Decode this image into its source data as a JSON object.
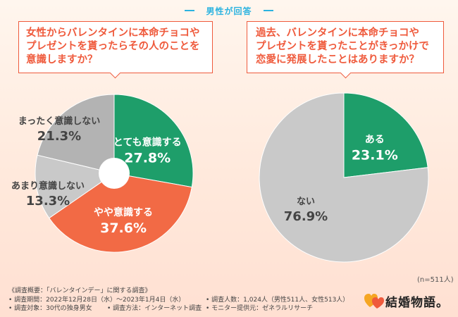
{
  "header": {
    "label": "男性が回答"
  },
  "question_left": {
    "lines": [
      "女性からバレンタインに本命チョコや",
      "プレゼントを貰ったらその人のことを",
      "意識しますか？"
    ]
  },
  "question_right": {
    "lines": [
      "過去、バレンタインに本命チョコや",
      "プレゼントを貰ったことがきっかけで",
      "恋愛に発展したことはありますか？"
    ]
  },
  "sample_note": "(n=511人)",
  "colors": {
    "accent": "#ef5a3c",
    "green": "#1e9e6a",
    "orange": "#f26a45",
    "light_gray": "#c9c9c9",
    "mid_gray": "#b3b3b3",
    "question": "#ef5a3c"
  },
  "chart_data": [
    {
      "type": "pie",
      "variant": "donut",
      "categories": [
        "とても意識する",
        "やや意識する",
        "あまり意識しない",
        "まったく意識しない"
      ],
      "values": [
        27.8,
        37.6,
        13.3,
        21.3
      ],
      "value_labels": [
        "27.8%",
        "37.6%",
        "13.3%",
        "21.3%"
      ],
      "colors": [
        "#1e9e6a",
        "#f26a45",
        "#c9c9c9",
        "#b3b3b3"
      ]
    },
    {
      "type": "pie",
      "categories": [
        "ある",
        "ない"
      ],
      "values": [
        23.1,
        76.9
      ],
      "value_labels": [
        "23.1%",
        "76.9%"
      ],
      "colors": [
        "#1e9e6a",
        "#c9c9c9"
      ]
    }
  ],
  "survey": {
    "title": "《調査概要：「バレンタインデー」に関する調査》",
    "period": "• 調査期間：2022年12月28日（水）〜2023年1月4日（水）",
    "respondents": "• 調査人数：1,024人（男性511人、女性513人）",
    "target": "• 調査対象：30代の独身男女",
    "method": "• 調査方法：インターネット調査",
    "provider": "• モニター提供元：ゼネラルリサーチ"
  },
  "logo": {
    "text": "結婚物語。",
    "icon": "two-hearts-icon"
  }
}
